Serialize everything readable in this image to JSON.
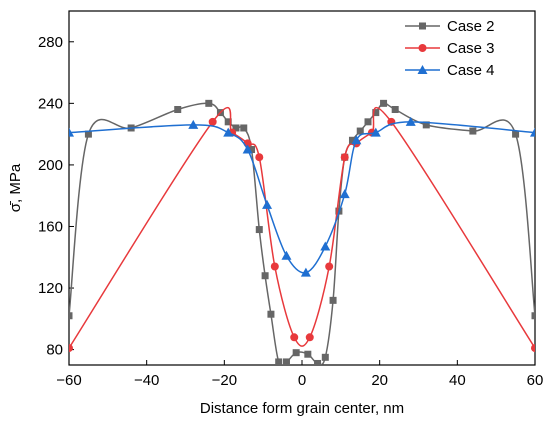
{
  "chart_data": {
    "type": "line",
    "xlabel": "Distance form grain center, nm",
    "ylabel": "σ̄, MPa",
    "xlim": [
      -60,
      60
    ],
    "ylim": [
      70,
      300
    ],
    "xticks": [
      -60,
      -40,
      -20,
      0,
      20,
      40,
      60
    ],
    "yticks": [
      80,
      120,
      160,
      200,
      240,
      280
    ],
    "grid": false,
    "legend_position": "top-right",
    "series": [
      {
        "name": "Case 2",
        "color": "#666666",
        "marker": "square",
        "x": [
          -60,
          -55,
          -44,
          -32,
          -24,
          -21,
          -19,
          -17,
          -15,
          -13,
          -11,
          -9.5,
          -8,
          -6,
          -4,
          -1.5,
          1.5,
          4,
          6,
          8,
          9.5,
          11,
          13,
          15,
          17,
          19,
          21,
          24,
          32,
          44,
          55,
          60
        ],
        "y": [
          102,
          220,
          224,
          236,
          240,
          234,
          228,
          224,
          224,
          210,
          158,
          128,
          103,
          72,
          72,
          78,
          77,
          71,
          75,
          112,
          170,
          205,
          216,
          222,
          228,
          234,
          240,
          236,
          226,
          222,
          220,
          102
        ]
      },
      {
        "name": "Case 3",
        "color": "#e8393c",
        "marker": "circle",
        "x": [
          -60,
          -23,
          -18,
          -14,
          -11,
          -7,
          -2,
          2,
          7,
          11,
          14,
          18,
          23,
          60
        ],
        "y": [
          81,
          228,
          221,
          214,
          205,
          134,
          88,
          88,
          134,
          205,
          214,
          221,
          228,
          81
        ]
      },
      {
        "name": "Case 4",
        "color": "#1f6fd1",
        "marker": "triangle",
        "x": [
          -60,
          -28,
          -19,
          -14,
          -9,
          -4,
          1,
          6,
          11,
          14,
          19,
          28,
          60
        ],
        "y": [
          221,
          226,
          221,
          210,
          174,
          141,
          130,
          147,
          181,
          216,
          221,
          228,
          221
        ]
      }
    ]
  }
}
